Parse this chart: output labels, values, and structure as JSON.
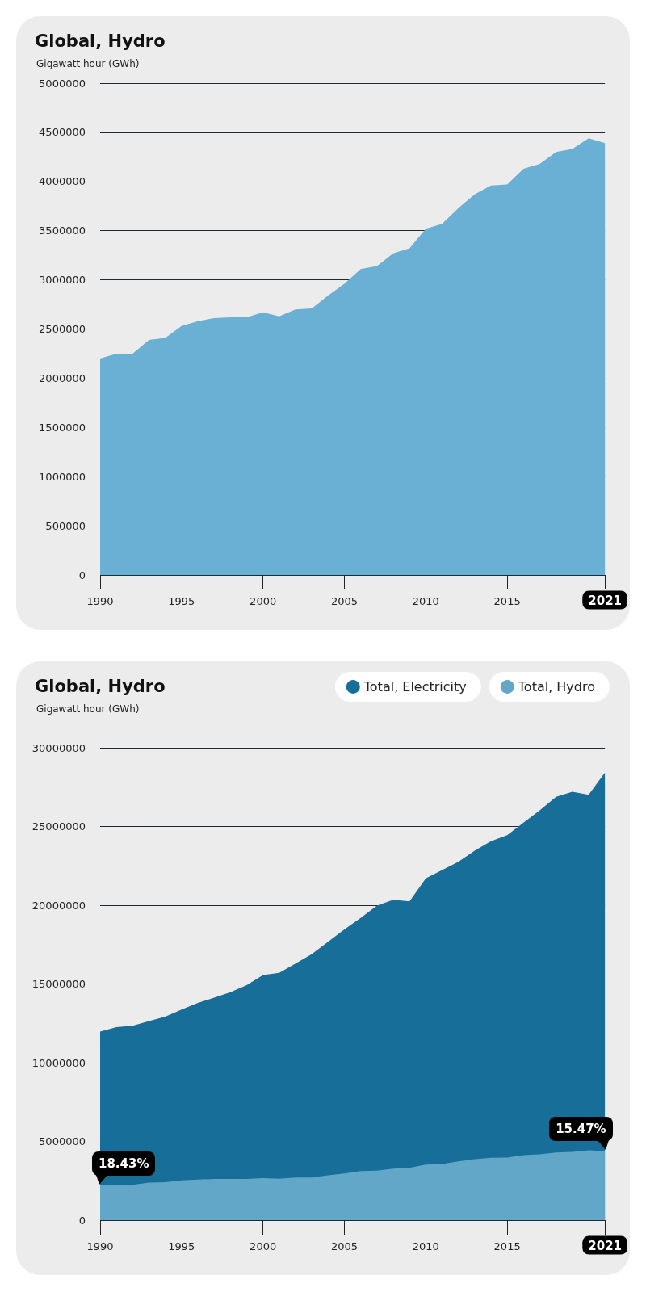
{
  "chart_data": [
    {
      "type": "area",
      "title": "Global, Hydro",
      "ylabel": "Gigawatt hour (GWh)",
      "x": [
        1990,
        1991,
        1992,
        1993,
        1994,
        1995,
        1996,
        1997,
        1998,
        1999,
        2000,
        2001,
        2002,
        2003,
        2004,
        2005,
        2006,
        2007,
        2008,
        2009,
        2010,
        2011,
        2012,
        2013,
        2014,
        2015,
        2016,
        2017,
        2018,
        2019,
        2020,
        2021
      ],
      "values": [
        2200000,
        2250000,
        2250000,
        2390000,
        2410000,
        2530000,
        2580000,
        2610000,
        2620000,
        2620000,
        2670000,
        2630000,
        2700000,
        2710000,
        2840000,
        2960000,
        3110000,
        3140000,
        3270000,
        3320000,
        3520000,
        3570000,
        3730000,
        3870000,
        3960000,
        3970000,
        4130000,
        4180000,
        4300000,
        4330000,
        4440000,
        4390000
      ],
      "color": "#6ab0d4",
      "xlim": [
        1990,
        2021
      ],
      "xticks": [
        1990,
        1995,
        2000,
        2005,
        2010,
        2015,
        2021
      ],
      "ylim": [
        0,
        5000000
      ],
      "yticks": [
        0,
        500000,
        1000000,
        1500000,
        2000000,
        2500000,
        3000000,
        3500000,
        4000000,
        4500000,
        5000000
      ],
      "grid": "y"
    },
    {
      "type": "area",
      "title": "Global, Hydro",
      "ylabel": "Gigawatt hour (GWh)",
      "x": [
        1990,
        1991,
        1992,
        1993,
        1994,
        1995,
        1996,
        1997,
        1998,
        1999,
        2000,
        2001,
        2002,
        2003,
        2004,
        2005,
        2006,
        2007,
        2008,
        2009,
        2010,
        2011,
        2012,
        2013,
        2014,
        2015,
        2016,
        2017,
        2018,
        2019,
        2020,
        2021
      ],
      "series": [
        {
          "name": "Total, Electricity",
          "color": "#176e98",
          "values": [
            11970000,
            12260000,
            12350000,
            12640000,
            12920000,
            13370000,
            13790000,
            14130000,
            14480000,
            14920000,
            15570000,
            15700000,
            16300000,
            16900000,
            17680000,
            18460000,
            19190000,
            19970000,
            20350000,
            20250000,
            21710000,
            22230000,
            22760000,
            23460000,
            24060000,
            24450000,
            25240000,
            26020000,
            26880000,
            27200000,
            27010000,
            28420000
          ]
        },
        {
          "name": "Total, Hydro",
          "color": "#62a6c8",
          "values": [
            2200000,
            2250000,
            2250000,
            2390000,
            2410000,
            2530000,
            2580000,
            2610000,
            2620000,
            2620000,
            2670000,
            2630000,
            2700000,
            2710000,
            2840000,
            2960000,
            3110000,
            3140000,
            3270000,
            3320000,
            3520000,
            3570000,
            3730000,
            3870000,
            3960000,
            3970000,
            4130000,
            4180000,
            4300000,
            4330000,
            4440000,
            4390000
          ]
        }
      ],
      "xlim": [
        1990,
        2021
      ],
      "xticks": [
        1990,
        1995,
        2000,
        2005,
        2010,
        2015,
        2021
      ],
      "ylim": [
        0,
        30000000
      ],
      "yticks": [
        0,
        5000000,
        10000000,
        15000000,
        20000000,
        25000000,
        30000000
      ],
      "grid": "y",
      "legend": "top right",
      "annotations": [
        {
          "text": "18.43%",
          "x": 1990,
          "y": 2200000
        },
        {
          "text": "15.47%",
          "x": 2021,
          "y": 4390000
        }
      ]
    }
  ]
}
